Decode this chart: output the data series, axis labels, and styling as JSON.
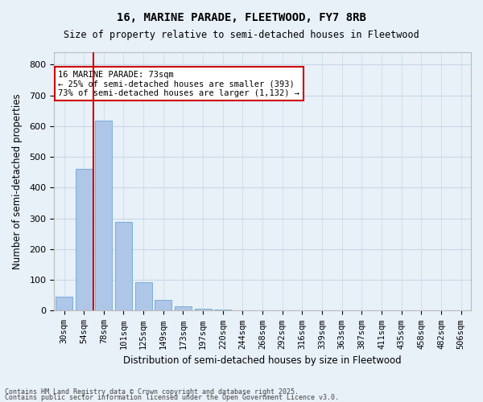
{
  "title1": "16, MARINE PARADE, FLEETWOOD, FY7 8RB",
  "title2": "Size of property relative to semi-detached houses in Fleetwood",
  "xlabel": "Distribution of semi-detached houses by size in Fleetwood",
  "ylabel": "Number of semi-detached properties",
  "categories": [
    "30sqm",
    "54sqm",
    "78sqm",
    "101sqm",
    "125sqm",
    "149sqm",
    "173sqm",
    "197sqm",
    "220sqm",
    "244sqm",
    "268sqm",
    "292sqm",
    "316sqm",
    "339sqm",
    "363sqm",
    "387sqm",
    "411sqm",
    "435sqm",
    "458sqm",
    "482sqm",
    "506sqm"
  ],
  "values": [
    46,
    462,
    617,
    288,
    92,
    36,
    13,
    7,
    5,
    0,
    0,
    0,
    0,
    0,
    0,
    0,
    0,
    0,
    0,
    0,
    0
  ],
  "bar_color": "#aec6e8",
  "bar_edge_color": "#7aaed6",
  "vline_x": 1.5,
  "vline_color": "#cc0000",
  "annotation_text": "16 MARINE PARADE: 73sqm\n← 25% of semi-detached houses are smaller (393)\n73% of semi-detached houses are larger (1,132) →",
  "annotation_box_color": "#ffffff",
  "annotation_box_edge": "#cc0000",
  "grid_color": "#c8d8e8",
  "bg_color": "#e8f0f8",
  "ylim": [
    0,
    840
  ],
  "yticks": [
    0,
    100,
    200,
    300,
    400,
    500,
    600,
    700,
    800
  ],
  "footer1": "Contains HM Land Registry data © Crown copyright and database right 2025.",
  "footer2": "Contains public sector information licensed under the Open Government Licence v3.0."
}
